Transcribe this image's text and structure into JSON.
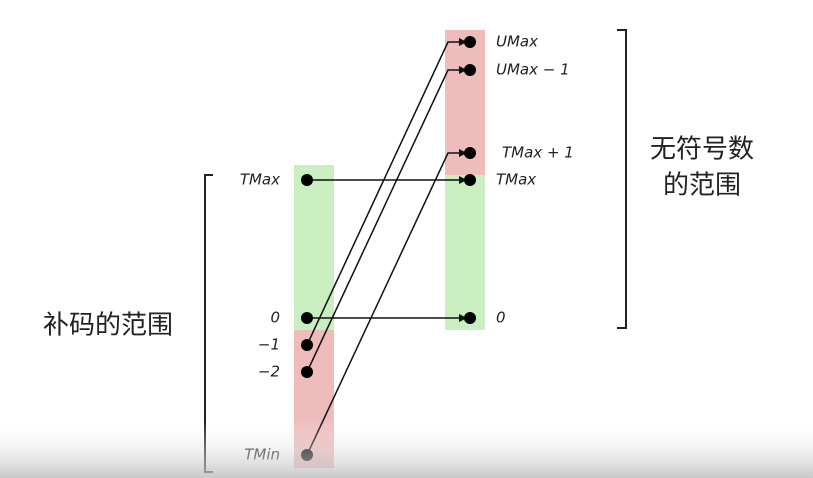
{
  "left_title": "补码的范围",
  "right_title": [
    "无符号数",
    "的范围"
  ],
  "left_nodes": [
    "TMax",
    "0",
    "−1",
    "−2",
    "TMin"
  ],
  "right_nodes": [
    "UMax",
    "UMax − 1",
    "TMax  + 1",
    "TMax",
    "0"
  ]
}
